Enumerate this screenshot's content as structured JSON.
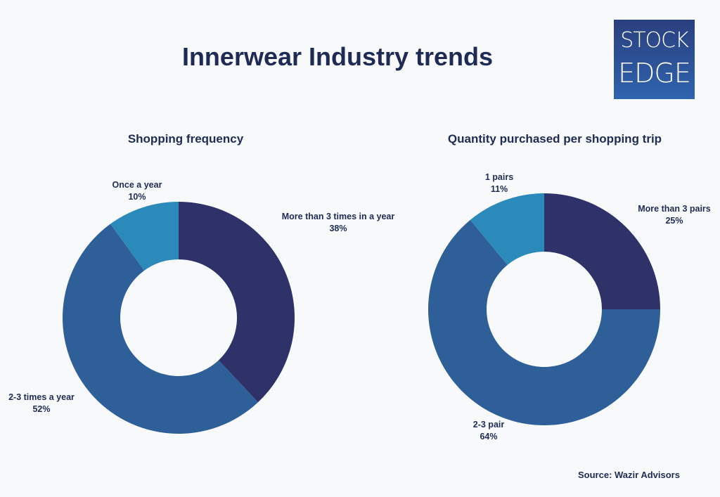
{
  "title": "Innerwear Industry trends",
  "logo": {
    "line1": "STOCK",
    "line2": "EDGE"
  },
  "source": "Source: Wazir Advisors",
  "colors": {
    "dark_navy": "#2f3268",
    "mid_blue": "#2f5f99",
    "light_blue": "#2b8ab9",
    "background": "#f7f9fa"
  },
  "chart_data": [
    {
      "type": "pie",
      "donut": true,
      "title": "Shopping frequency",
      "series": [
        {
          "label": "More than 3 times in a year",
          "value": 38,
          "display": "38%",
          "color": "#2f3268"
        },
        {
          "label": "2-3 times a year",
          "value": 52,
          "display": "52%",
          "color": "#2f5f99"
        },
        {
          "label": "Once a year",
          "value": 10,
          "display": "10%",
          "color": "#2b8ab9"
        }
      ]
    },
    {
      "type": "pie",
      "donut": true,
      "title": "Quantity purchased per shopping trip",
      "series": [
        {
          "label": "More than 3 pairs",
          "value": 25,
          "display": "25%",
          "color": "#2f3268"
        },
        {
          "label": "2-3 pair",
          "value": 64,
          "display": "64%",
          "color": "#2f5f99"
        },
        {
          "label": "1 pairs",
          "value": 11,
          "display": "11%",
          "color": "#2b8ab9"
        }
      ]
    }
  ]
}
